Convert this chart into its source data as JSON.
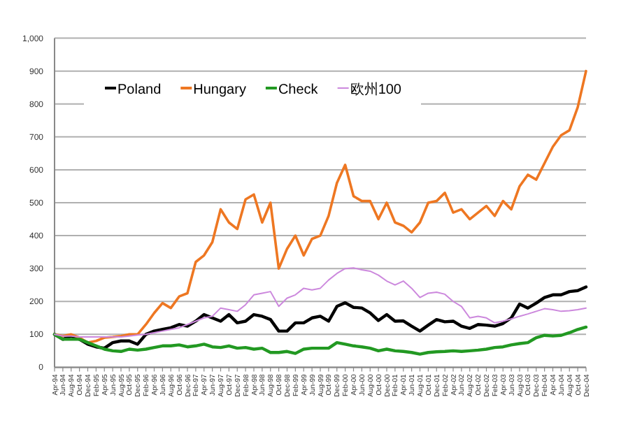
{
  "chart_data": {
    "type": "line",
    "categories": [
      "Apr-94",
      "Jun-94",
      "Aug-94",
      "Oct-94",
      "Dec-94",
      "Feb-95",
      "Apr-95",
      "Jun-95",
      "Aug-95",
      "Oct-95",
      "Dec-95",
      "Feb-96",
      "Apr-96",
      "Jun-96",
      "Aug-96",
      "Oct-96",
      "Dec-96",
      "Feb-97",
      "Apr-97",
      "Jun-97",
      "Aug-97",
      "Oct-97",
      "Dec-97",
      "Feb-98",
      "Apr-98",
      "Jun-98",
      "Aug-98",
      "Oct-98",
      "Dec-98",
      "Feb-99",
      "Apr-99",
      "Jun-99",
      "Aug-99",
      "Oct-99",
      "Dec-99",
      "Feb-00",
      "Apr-00",
      "Jun-00",
      "Aug-00",
      "Oct-00",
      "Dec-00",
      "Feb-01",
      "Apr-01",
      "Jun-01",
      "Aug-01",
      "Oct-01",
      "Dec-01",
      "Feb-02",
      "Apr-02",
      "Jun-02",
      "Aug-02",
      "Oct-02",
      "Dec-02",
      "Feb-03",
      "Apr-03",
      "Jun-03",
      "Aug-03",
      "Oct-03",
      "Dec-03",
      "Feb-04",
      "Apr-04",
      "Jun-04",
      "Aug-04",
      "Oct-04",
      "Dec-04"
    ],
    "series": [
      {
        "name": "Poland",
        "color": "#000000",
        "values": [
          100,
          85,
          95,
          85,
          70,
          62,
          58,
          75,
          80,
          80,
          70,
          100,
          110,
          115,
          120,
          130,
          125,
          140,
          160,
          150,
          140,
          160,
          135,
          140,
          160,
          155,
          145,
          110,
          110,
          135,
          135,
          150,
          155,
          140,
          185,
          196,
          182,
          180,
          165,
          142,
          160,
          140,
          141,
          125,
          110,
          128,
          145,
          138,
          140,
          125,
          118,
          130,
          128,
          125,
          133,
          150,
          192,
          180,
          195,
          212,
          220,
          220,
          230,
          233,
          244
        ]
      },
      {
        "name": "Hungary",
        "color": "#ee7722",
        "values": [
          100,
          95,
          100,
          90,
          75,
          80,
          90,
          92,
          95,
          100,
          100,
          130,
          165,
          195,
          180,
          215,
          225,
          320,
          340,
          380,
          480,
          440,
          420,
          510,
          525,
          440,
          500,
          300,
          360,
          400,
          340,
          390,
          400,
          460,
          560,
          615,
          520,
          505,
          505,
          450,
          500,
          440,
          430,
          410,
          440,
          500,
          505,
          530,
          470,
          480,
          450,
          470,
          490,
          460,
          505,
          480,
          550,
          585,
          570,
          620,
          670,
          705,
          720,
          790,
          900
        ]
      },
      {
        "name": "Check",
        "color": "#229922",
        "values": [
          100,
          85,
          85,
          85,
          75,
          65,
          55,
          50,
          48,
          55,
          52,
          55,
          60,
          65,
          65,
          68,
          62,
          65,
          70,
          62,
          60,
          65,
          58,
          60,
          55,
          58,
          45,
          45,
          48,
          42,
          55,
          58,
          58,
          58,
          75,
          70,
          65,
          62,
          58,
          50,
          55,
          50,
          48,
          45,
          40,
          45,
          47,
          48,
          50,
          48,
          50,
          52,
          55,
          60,
          62,
          68,
          72,
          75,
          90,
          97,
          95,
          97,
          105,
          115,
          122
        ]
      },
      {
        "name": "欧州100",
        "color": "#cc88dd",
        "values": [
          100,
          95,
          95,
          92,
          92,
          92,
          92,
          92,
          92,
          95,
          98,
          100,
          105,
          110,
          115,
          120,
          130,
          140,
          150,
          155,
          180,
          175,
          170,
          190,
          220,
          225,
          230,
          185,
          210,
          220,
          240,
          235,
          240,
          265,
          285,
          300,
          302,
          296,
          292,
          280,
          262,
          250,
          262,
          240,
          212,
          225,
          228,
          222,
          200,
          185,
          150,
          155,
          150,
          135,
          140,
          147,
          155,
          162,
          170,
          178,
          175,
          170,
          172,
          175,
          180
        ]
      }
    ],
    "ylim": [
      0,
      1000
    ],
    "yticks": [
      0,
      100,
      200,
      300,
      400,
      500,
      600,
      700,
      800,
      900,
      {
        "value": 1000,
        "label": "1,000"
      }
    ],
    "grid": "y",
    "legend": "top left",
    "marker": "none",
    "line_style": "solid"
  }
}
